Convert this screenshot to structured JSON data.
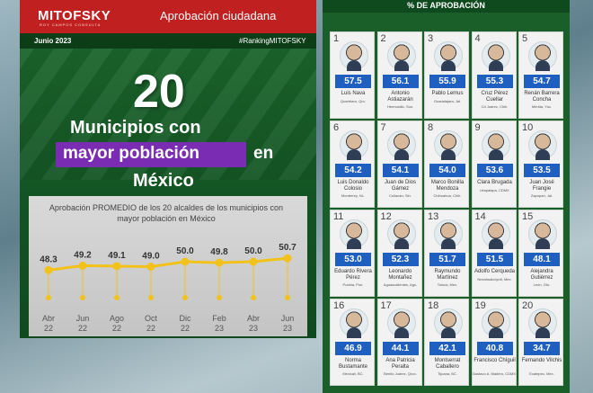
{
  "header": {
    "logo": "MITOFSKY",
    "logo_sub": "ROY CAMPOS CONSULTA",
    "title": "Aprobación ciudadana",
    "date": "Junio 2023",
    "hashtag": "#RankingMITOFSKY"
  },
  "headline": {
    "number": "20",
    "line1": "Municipios con",
    "highlight": "mayor población",
    "line2_rest": "en",
    "line3": "México"
  },
  "chart_data": {
    "type": "line",
    "subtitle": "Aprobación PROMEDIO de los 20 alcaldes de los municipios con mayor población en México",
    "categories": [
      [
        "Abr",
        "22"
      ],
      [
        "Jun",
        "22"
      ],
      [
        "Ago",
        "22"
      ],
      [
        "Oct",
        "22"
      ],
      [
        "Dic",
        "22"
      ],
      [
        "Feb",
        "23"
      ],
      [
        "Abr",
        "23"
      ],
      [
        "Jun",
        "23"
      ]
    ],
    "values": [
      48.3,
      49.2,
      49.1,
      49.0,
      50.0,
      49.8,
      50.0,
      50.7
    ],
    "labels": [
      "48.3",
      "49.2",
      "49.1",
      "49.0",
      "50.0",
      "49.8",
      "50.0",
      "50.7"
    ],
    "line_color": "#f2c21b"
  },
  "ranking": {
    "title": "% DE APROBACIÓN",
    "items": [
      {
        "rank": "1",
        "pct": "57.5",
        "name": "Luis Nava",
        "loc": "Querétaro, Qro."
      },
      {
        "rank": "2",
        "pct": "56.1",
        "name": "Antonio Astiazarán",
        "loc": "Hermosillo, Son."
      },
      {
        "rank": "3",
        "pct": "55.9",
        "name": "Pablo Lemus",
        "loc": "Guadalajara, Jal."
      },
      {
        "rank": "4",
        "pct": "55.3",
        "name": "Cruz Pérez Cuellar",
        "loc": "Cd Juárez, Chih."
      },
      {
        "rank": "5",
        "pct": "54.7",
        "name": "Renán Barrera Concha",
        "loc": "Mérida, Yuc."
      },
      {
        "rank": "6",
        "pct": "54.2",
        "name": "Luis Donaldo Colosio",
        "loc": "Monterrey, NL."
      },
      {
        "rank": "7",
        "pct": "54.1",
        "name": "Juan de Dios Gámez",
        "loc": "Culiacán, Sin."
      },
      {
        "rank": "8",
        "pct": "54.0",
        "name": "Marco Bonilla Mendoza",
        "loc": "Chihuahua, Chih."
      },
      {
        "rank": "9",
        "pct": "53.6",
        "name": "Clara Brugada",
        "loc": "Iztapalapa, CDMX"
      },
      {
        "rank": "10",
        "pct": "53.5",
        "name": "Juan José Frangie",
        "loc": "Zapopan, Jal."
      },
      {
        "rank": "11",
        "pct": "53.0",
        "name": "Eduardo Rivera Pérez",
        "loc": "Puebla, Pue."
      },
      {
        "rank": "12",
        "pct": "52.3",
        "name": "Leonardo Montañez",
        "loc": "Aguascalientes, Ags."
      },
      {
        "rank": "13",
        "pct": "51.7",
        "name": "Raymundo Martínez",
        "loc": "Toluca, Mex."
      },
      {
        "rank": "14",
        "pct": "51.5",
        "name": "Adolfo Cerqueda",
        "loc": "Nezahualcóyotl, Mex."
      },
      {
        "rank": "15",
        "pct": "48.1",
        "name": "Alejandra Gutiérrez",
        "loc": "León, Gto."
      },
      {
        "rank": "16",
        "pct": "46.9",
        "name": "Norma Bustamante",
        "loc": "Mexicali, BC."
      },
      {
        "rank": "17",
        "pct": "44.1",
        "name": "Ana Patricia Peralta",
        "loc": "Benito Juárez, Qroo."
      },
      {
        "rank": "18",
        "pct": "42.1",
        "name": "Montserrat Caballero",
        "loc": "Tijuana, BC."
      },
      {
        "rank": "19",
        "pct": "40.8",
        "name": "Francisco Chíguil",
        "loc": "Gustavo A. Madero, CDMX."
      },
      {
        "rank": "20",
        "pct": "34.7",
        "name": "Fernando Vilchis",
        "loc": "Ecatepec, Mex."
      }
    ]
  }
}
